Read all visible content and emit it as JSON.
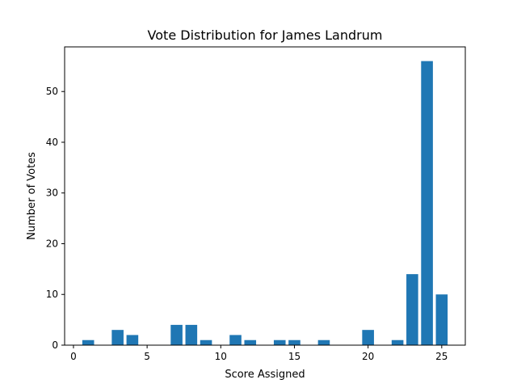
{
  "chart_data": {
    "type": "bar",
    "title": "Vote Distribution for James Landrum",
    "xlabel": "Score Assigned",
    "ylabel": "Number of Votes",
    "x": [
      1,
      3,
      4,
      7,
      8,
      9,
      11,
      12,
      14,
      15,
      17,
      20,
      22,
      23,
      24,
      25
    ],
    "values": [
      1,
      3,
      2,
      4,
      4,
      1,
      2,
      1,
      1,
      1,
      1,
      3,
      1,
      14,
      56,
      10
    ],
    "xlim": [
      -0.6,
      26.6
    ],
    "ylim": [
      0,
      58.8
    ],
    "xticks": [
      0,
      5,
      10,
      15,
      20,
      25
    ],
    "yticks": [
      0,
      10,
      20,
      30,
      40,
      50
    ],
    "bar_width": 0.8,
    "bar_color": "#1f77b4",
    "grid": false,
    "legend": "none"
  }
}
